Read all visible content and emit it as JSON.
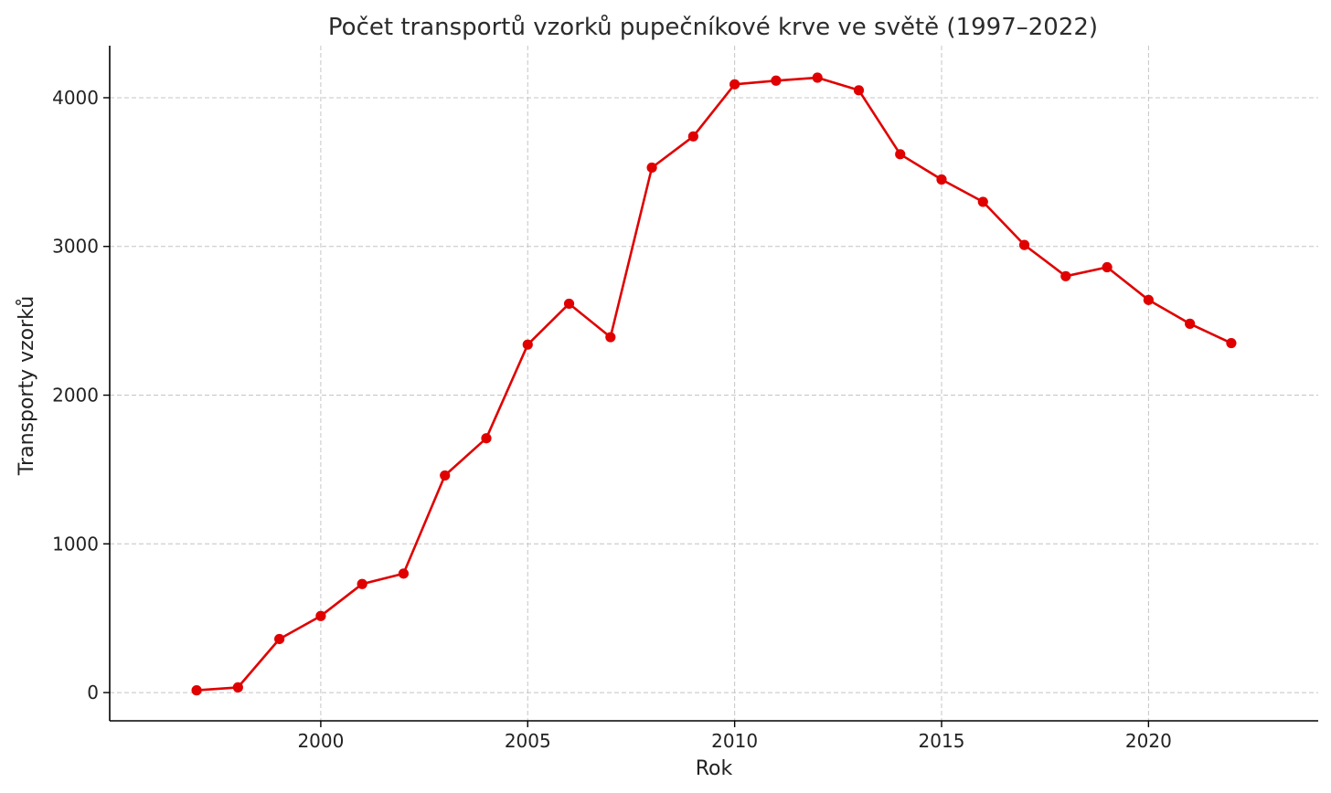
{
  "chart_data": {
    "type": "line",
    "title": "Počet transportů vzorků pupečníkové krve ve světě (1997–2022)",
    "xlabel": "Rok",
    "ylabel": "Transporty vzorků",
    "x": [
      1997,
      1998,
      1999,
      2000,
      2001,
      2002,
      2003,
      2004,
      2005,
      2006,
      2007,
      2008,
      2009,
      2010,
      2011,
      2012,
      2013,
      2014,
      2015,
      2016,
      2017,
      2018,
      2019,
      2020,
      2021,
      2022
    ],
    "series": [
      {
        "values": [
          15,
          35,
          360,
          515,
          730,
          800,
          1460,
          1710,
          2340,
          2615,
          2390,
          3530,
          3740,
          4090,
          4115,
          4135,
          4050,
          3620,
          3450,
          3300,
          3010,
          2800,
          2860,
          2640,
          2480,
          2350
        ],
        "color": "#e00000"
      }
    ],
    "xticks": [
      "2000",
      "2005",
      "2010",
      "2015",
      "2020"
    ],
    "yticks": [
      "0",
      "1000",
      "2000",
      "3000",
      "4000"
    ],
    "xlim": [
      1994.9,
      2024.1
    ],
    "ylim": [
      -190,
      4350
    ],
    "grid": true,
    "legend": "none"
  }
}
